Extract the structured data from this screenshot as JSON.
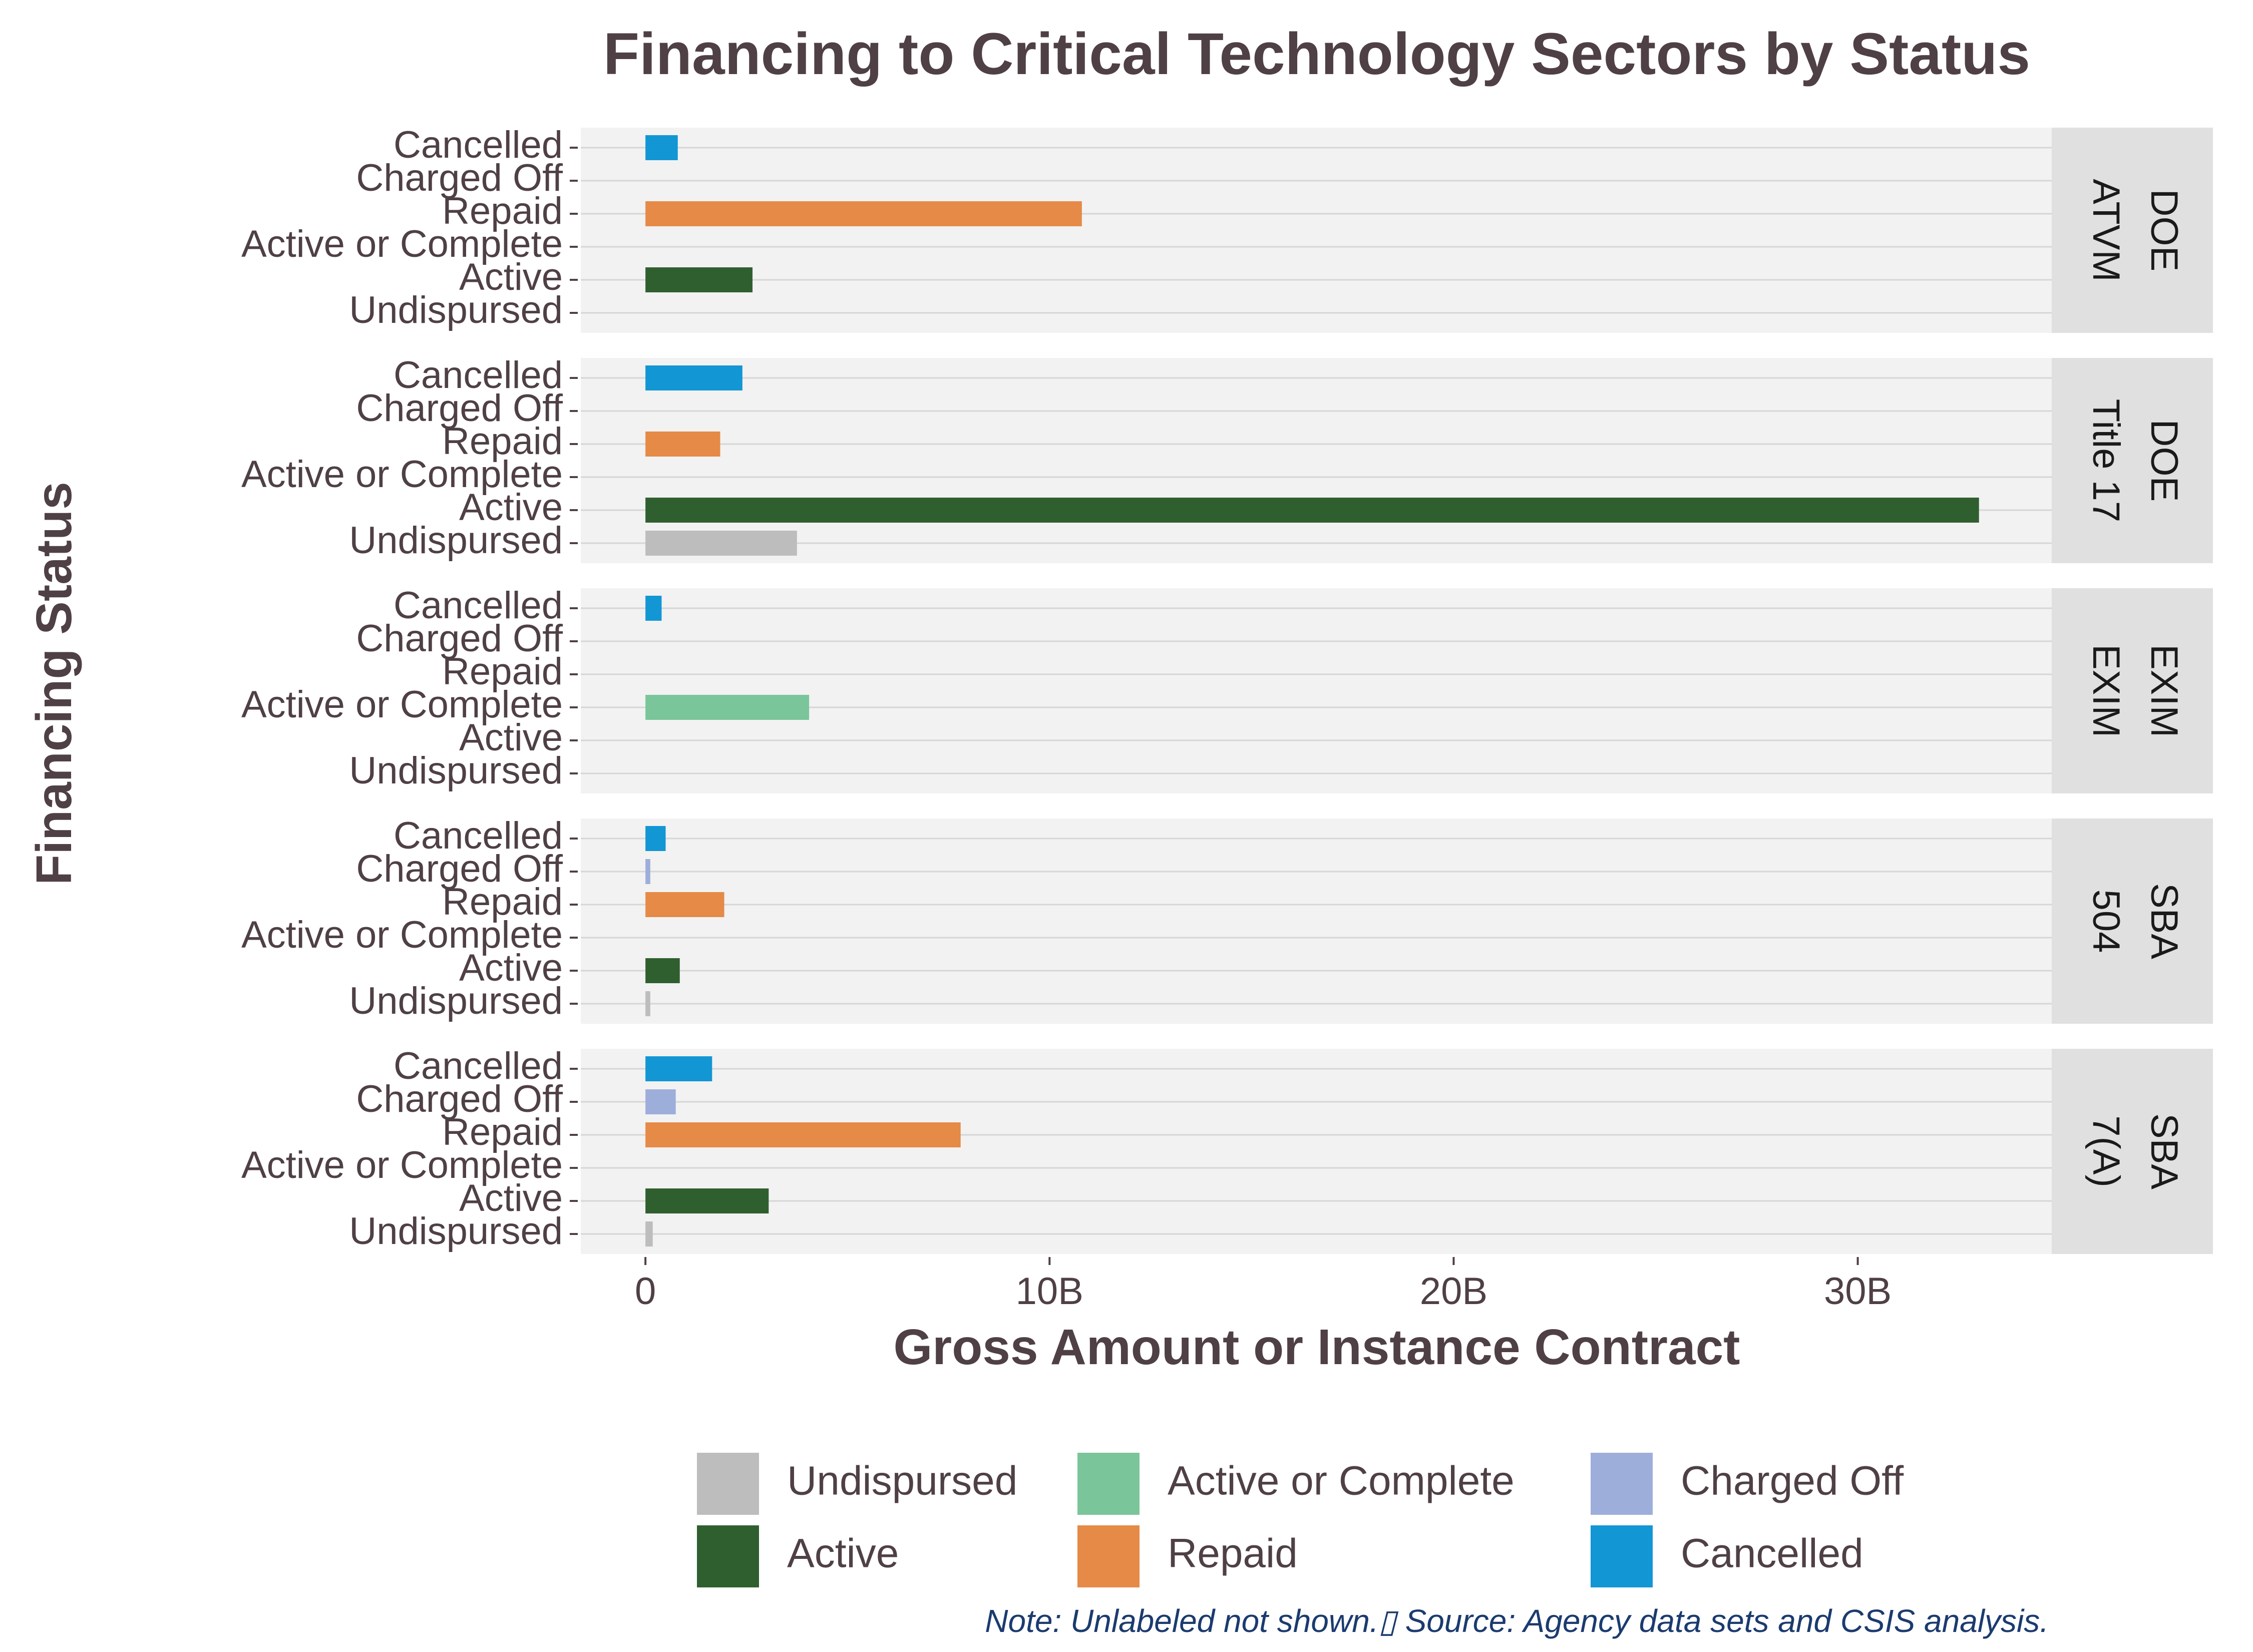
{
  "chart_data": {
    "type": "bar",
    "orientation": "horizontal",
    "faceted": true,
    "title": "Financing to Critical Technology Sectors by Status",
    "xlabel": "Gross Amount or Instance Contract",
    "ylabel": "Financing Status",
    "caption": "Note: Unlabeled not shown.▯ Source: Agency data sets and CSIS analysis.",
    "xlim": [
      -1.6,
      34.8
    ],
    "x_unit": "billions",
    "x_ticks": [
      {
        "value": 0,
        "label": "0"
      },
      {
        "value": 10,
        "label": "10B"
      },
      {
        "value": 20,
        "label": "20B"
      },
      {
        "value": 30,
        "label": "30B"
      }
    ],
    "categories": [
      "Cancelled",
      "Charged Off",
      "Repaid",
      "Active or Complete",
      "Active",
      "Undispursed"
    ],
    "colors": {
      "Undispursed": "#bdbdbd",
      "Active or Complete": "#7bc59b",
      "Charged Off": "#9eaedb",
      "Active": "#305f2f",
      "Repaid": "#e58a47",
      "Cancelled": "#1296d4"
    },
    "grid": true,
    "panel_background": "#f2f2f2",
    "strip_background": "#e0e0e0",
    "facets": [
      {
        "label_lines": [
          "DOE",
          "ATVM"
        ],
        "values": {
          "Cancelled": 0.8,
          "Charged Off": 0,
          "Repaid": 10.8,
          "Active or Complete": 0,
          "Active": 2.65,
          "Undispursed": 0
        }
      },
      {
        "label_lines": [
          "DOE",
          "Title 17"
        ],
        "values": {
          "Cancelled": 2.4,
          "Charged Off": 0,
          "Repaid": 1.85,
          "Active or Complete": 0,
          "Active": 33.0,
          "Undispursed": 3.75
        }
      },
      {
        "label_lines": [
          "EXIM",
          "EXIM"
        ],
        "values": {
          "Cancelled": 0.4,
          "Charged Off": 0,
          "Repaid": 0,
          "Active or Complete": 4.05,
          "Active": 0,
          "Undispursed": 0
        }
      },
      {
        "label_lines": [
          "SBA",
          "504"
        ],
        "values": {
          "Cancelled": 0.5,
          "Charged Off": 0.12,
          "Repaid": 1.95,
          "Active or Complete": 0,
          "Active": 0.85,
          "Undispursed": 0.12
        }
      },
      {
        "label_lines": [
          "SBA",
          "7(A)"
        ],
        "values": {
          "Cancelled": 1.65,
          "Charged Off": 0.75,
          "Repaid": 7.8,
          "Active or Complete": 0,
          "Active": 3.05,
          "Undispursed": 0.18
        }
      }
    ],
    "legend": {
      "position": "bottom",
      "items": [
        "Undispursed",
        "Active or Complete",
        "Charged Off",
        "Active",
        "Repaid",
        "Cancelled"
      ]
    }
  }
}
